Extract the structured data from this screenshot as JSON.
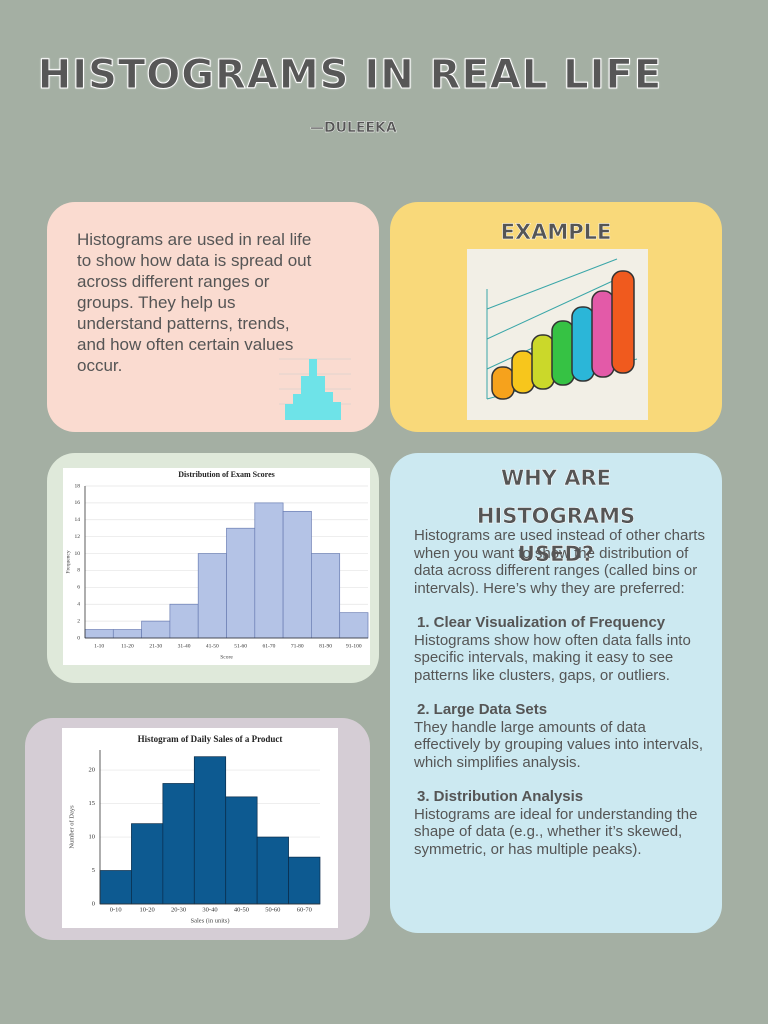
{
  "header": {
    "title": "HISTOGRAMS IN REAL LIFE",
    "author": "—DULEEKA"
  },
  "intro": {
    "text": "Histograms are used in real life to show how data is spread out across different ranges or groups. They help us understand patterns, trends, and how often certain values occur."
  },
  "example": {
    "heading": "EXAMPLE"
  },
  "why": {
    "heading": "WHY ARE HISTOGRAMS USED?",
    "text": "Histograms are used instead of other charts when you want to show the distribution of data across different ranges (called bins or intervals). Here’s why they are preferred:",
    "points": [
      {
        "title": "1. Clear Visualization of Frequency",
        "text": "Histograms show how often data falls into specific intervals, making it easy to see patterns like clusters, gaps, or outliers."
      },
      {
        "title": "2. Large Data Sets",
        "text": "They handle large amounts of data effectively by grouping values into intervals, which simplifies analysis."
      },
      {
        "title": "3. Distribution Analysis",
        "text": "Histograms are ideal for understanding the shape of data (e.g., whether it’s skewed, symmetric, or has multiple peaks)."
      }
    ]
  },
  "chart_data": [
    {
      "type": "bar",
      "title": "Distribution of Exam Scores",
      "x_label": "Score",
      "y_label": "Frequency",
      "categories": [
        "1-10",
        "11-20",
        "21-30",
        "31-40",
        "41-50",
        "51-60",
        "61-70",
        "71-80",
        "81-90",
        "91-100"
      ],
      "values": [
        1,
        1,
        2,
        4,
        10,
        13,
        16,
        15,
        10,
        3
      ],
      "color": "#b4c3e6",
      "ylim": [
        0,
        18
      ],
      "yticks": [
        0,
        2,
        4,
        6,
        8,
        10,
        12,
        14,
        16,
        18
      ],
      "grid": true
    },
    {
      "type": "bar",
      "title": "Histogram of Daily Sales of a Product",
      "x_label": "Sales (in units)",
      "y_label": "Number of Days",
      "categories": [
        "0-10",
        "10-20",
        "20-30",
        "30-40",
        "40-50",
        "50-60",
        "60-70"
      ],
      "values": [
        5,
        12,
        18,
        22,
        16,
        10,
        7
      ],
      "color": "#0d5a91",
      "ylim": [
        0,
        23
      ],
      "yticks": [
        0,
        5,
        10,
        15,
        20
      ],
      "grid": true
    }
  ]
}
